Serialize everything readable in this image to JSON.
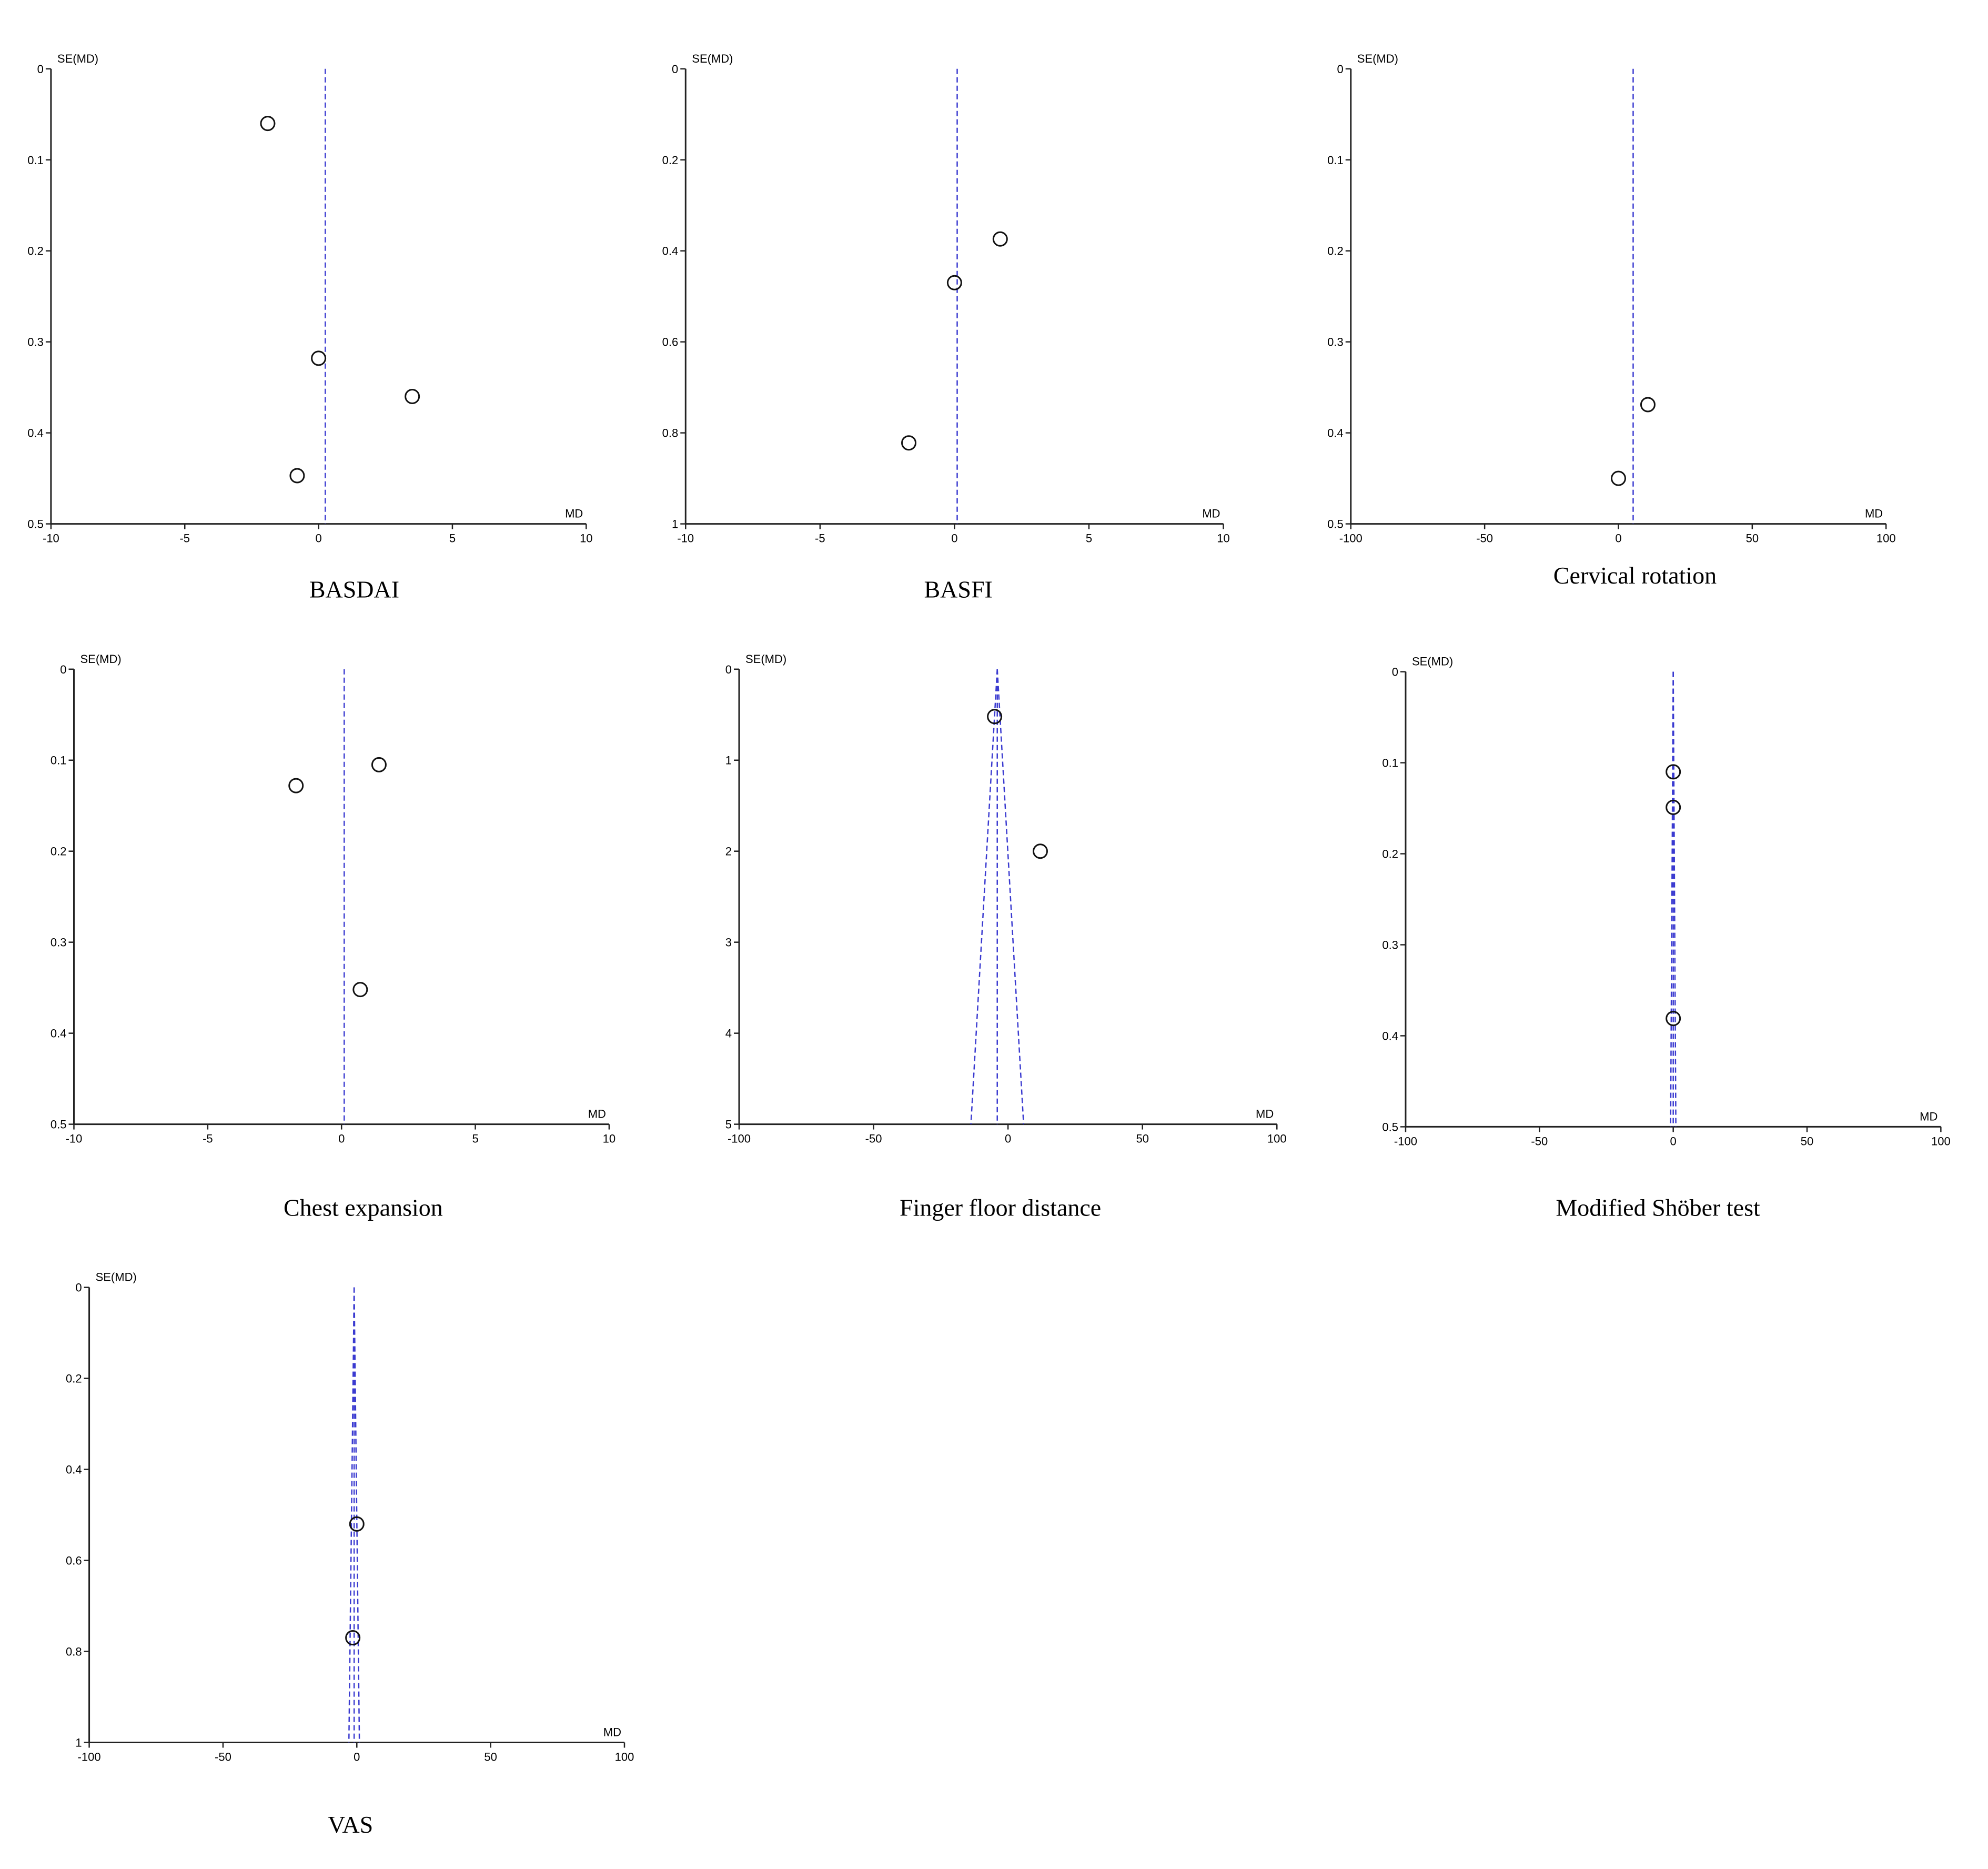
{
  "chart_data": [
    {
      "type": "scatter",
      "panel_title": "BASDAI",
      "xlabel": "MD",
      "ylabel": "SE(MD)",
      "xlim": [
        -10,
        10
      ],
      "ylim": [
        0,
        0.5
      ],
      "y_inverted": true,
      "xticks": [
        -10,
        -5,
        0,
        5,
        10
      ],
      "xtick_labels": [
        "-10",
        "-5",
        "0",
        "5",
        "10"
      ],
      "yticks": [
        0,
        0.1,
        0.2,
        0.3,
        0.4,
        0.5
      ],
      "ytick_labels": [
        "0",
        "0.1",
        "0.2",
        "0.3",
        "0.4",
        "0.5"
      ],
      "pooled_md": 0.25,
      "funnel": false,
      "points": [
        {
          "x": -1.9,
          "y": 0.06
        },
        {
          "x": 0.0,
          "y": 0.318
        },
        {
          "x": 3.5,
          "y": 0.36
        },
        {
          "x": -0.8,
          "y": 0.447
        }
      ]
    },
    {
      "type": "scatter",
      "panel_title": "BASFI",
      "xlabel": "MD",
      "ylabel": "SE(MD)",
      "xlim": [
        -10,
        10
      ],
      "ylim": [
        0,
        1
      ],
      "y_inverted": true,
      "xticks": [
        -10,
        -5,
        0,
        5,
        10
      ],
      "xtick_labels": [
        "-10",
        "-5",
        "0",
        "5",
        "10"
      ],
      "yticks": [
        0,
        0.2,
        0.4,
        0.6,
        0.8,
        1
      ],
      "ytick_labels": [
        "0",
        "0.2",
        "0.4",
        "0.6",
        "0.8",
        "1"
      ],
      "pooled_md": 0.1,
      "funnel": false,
      "points": [
        {
          "x": 1.7,
          "y": 0.374
        },
        {
          "x": 0.0,
          "y": 0.47
        },
        {
          "x": -1.7,
          "y": 0.822
        }
      ]
    },
    {
      "type": "scatter",
      "panel_title": "Cervical rotation",
      "xlabel": "MD",
      "ylabel": "SE(MD)",
      "xlim": [
        -100,
        100
      ],
      "ylim": [
        0,
        0.5
      ],
      "y_inverted": true,
      "xticks": [
        -100,
        -50,
        0,
        50,
        100
      ],
      "xtick_labels": [
        "-100",
        "-50",
        "0",
        "50",
        "100"
      ],
      "yticks": [
        0,
        0.1,
        0.2,
        0.3,
        0.4,
        0.5
      ],
      "ytick_labels": [
        "0",
        "0.1",
        "0.2",
        "0.3",
        "0.4",
        "0.5"
      ],
      "pooled_md": 5.5,
      "funnel": false,
      "points": [
        {
          "x": 11,
          "y": 0.369
        },
        {
          "x": 0,
          "y": 0.45
        }
      ]
    },
    {
      "type": "scatter",
      "panel_title": "Chest expansion",
      "xlabel": "MD",
      "ylabel": "SE(MD)",
      "xlim": [
        -10,
        10
      ],
      "ylim": [
        0,
        0.5
      ],
      "y_inverted": true,
      "xticks": [
        -10,
        -5,
        0,
        5,
        10
      ],
      "xtick_labels": [
        "-10",
        "-5",
        "0",
        "5",
        "10"
      ],
      "yticks": [
        0,
        0.1,
        0.2,
        0.3,
        0.4,
        0.5
      ],
      "ytick_labels": [
        "0",
        "0.1",
        "0.2",
        "0.3",
        "0.4",
        "0.5"
      ],
      "pooled_md": 0.1,
      "funnel": false,
      "points": [
        {
          "x": 1.4,
          "y": 0.105
        },
        {
          "x": -1.7,
          "y": 0.128
        },
        {
          "x": 0.7,
          "y": 0.352
        }
      ]
    },
    {
      "type": "scatter",
      "panel_title": "Finger floor distance",
      "xlabel": "MD",
      "ylabel": "SE(MD)",
      "xlim": [
        -100,
        100
      ],
      "ylim": [
        0,
        5
      ],
      "y_inverted": true,
      "xticks": [
        -100,
        -50,
        0,
        50,
        100
      ],
      "xtick_labels": [
        "-100",
        "-50",
        "0",
        "50",
        "100"
      ],
      "yticks": [
        0,
        1,
        2,
        3,
        4,
        5
      ],
      "ytick_labels": [
        "0",
        "1",
        "2",
        "3",
        "4",
        "5"
      ],
      "pooled_md": -4,
      "funnel": true,
      "points": [
        {
          "x": -5,
          "y": 0.52
        },
        {
          "x": 12,
          "y": 2.0
        }
      ]
    },
    {
      "type": "scatter",
      "panel_title": "Modified Shöber test",
      "xlabel": "MD",
      "ylabel": "SE(MD)",
      "xlim": [
        -100,
        100
      ],
      "ylim": [
        0,
        0.5
      ],
      "y_inverted": true,
      "xticks": [
        -100,
        -50,
        0,
        50,
        100
      ],
      "xtick_labels": [
        "-100",
        "-50",
        "0",
        "50",
        "100"
      ],
      "yticks": [
        0,
        0.1,
        0.2,
        0.3,
        0.4,
        0.5
      ],
      "ytick_labels": [
        "0",
        "0.1",
        "0.2",
        "0.3",
        "0.4",
        "0.5"
      ],
      "pooled_md": 0,
      "funnel": true,
      "points": [
        {
          "x": 0,
          "y": 0.11
        },
        {
          "x": 0,
          "y": 0.149
        },
        {
          "x": 0,
          "y": 0.381
        }
      ]
    },
    {
      "type": "scatter",
      "panel_title": "VAS",
      "xlabel": "MD",
      "ylabel": "SE(MD)",
      "xlim": [
        -100,
        100
      ],
      "ylim": [
        0,
        1
      ],
      "y_inverted": true,
      "xticks": [
        -100,
        -50,
        0,
        50,
        100
      ],
      "xtick_labels": [
        "-100",
        "-50",
        "0",
        "50",
        "100"
      ],
      "yticks": [
        0,
        0.2,
        0.4,
        0.6,
        0.8,
        1
      ],
      "ytick_labels": [
        "0",
        "0.2",
        "0.4",
        "0.6",
        "0.8",
        "1"
      ],
      "pooled_md": -1,
      "funnel": true,
      "points": [
        {
          "x": 0,
          "y": 0.52
        },
        {
          "x": -1.5,
          "y": 0.77
        }
      ]
    }
  ]
}
